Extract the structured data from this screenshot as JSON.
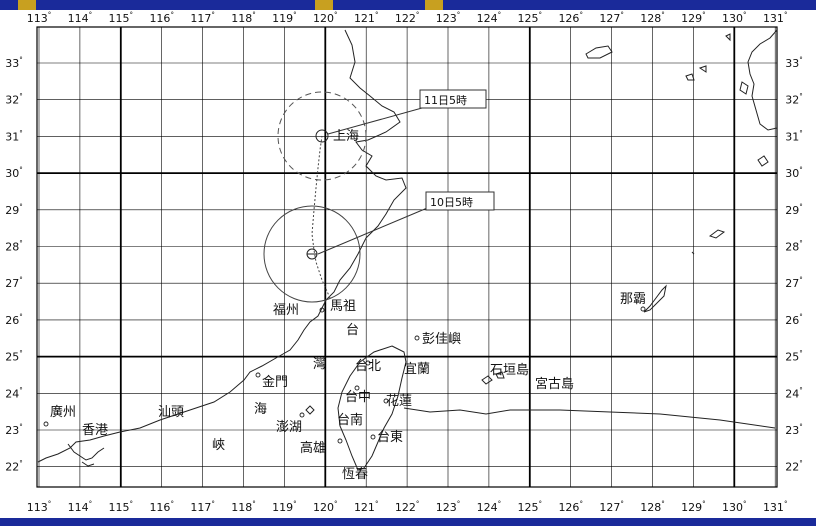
{
  "map": {
    "type": "typhoon-track-map",
    "grid_color": "#000000",
    "coast_color": "#222222",
    "lon_labels": [
      "113",
      "114",
      "115",
      "116",
      "117",
      "118",
      "119",
      "120",
      "121",
      "122",
      "123",
      "124",
      "125",
      "126",
      "127",
      "128",
      "129",
      "130",
      "131"
    ],
    "lat_labels": [
      "33",
      "32",
      "31",
      "30",
      "29",
      "28",
      "27",
      "26",
      "25",
      "24",
      "23",
      "22"
    ],
    "degree_mark": "°"
  },
  "places": [
    {
      "id": "shanghai",
      "label": "上海"
    },
    {
      "id": "fuzhou",
      "label": "福州"
    },
    {
      "id": "mazu",
      "label": "馬祖"
    },
    {
      "id": "taiwan_strait_tai",
      "label": "台"
    },
    {
      "id": "taiwan_strait_wan",
      "label": "灣"
    },
    {
      "id": "pengjiayu",
      "label": "彭佳嶼"
    },
    {
      "id": "taibei",
      "label": "台北"
    },
    {
      "id": "yilan",
      "label": "宜蘭"
    },
    {
      "id": "jinmen",
      "label": "金門"
    },
    {
      "id": "taizhong",
      "label": "台中"
    },
    {
      "id": "hualian",
      "label": "花蓮"
    },
    {
      "id": "penghu",
      "label": "澎湖"
    },
    {
      "id": "tainan",
      "label": "台南"
    },
    {
      "id": "taidong",
      "label": "台東"
    },
    {
      "id": "gaoxiong",
      "label": "高雄"
    },
    {
      "id": "hengchun",
      "label": "恆春"
    },
    {
      "id": "guangzhou",
      "label": "廣州"
    },
    {
      "id": "xianggang",
      "label": "香港"
    },
    {
      "id": "shantou",
      "label": "汕頭"
    },
    {
      "id": "strait_hai",
      "label": "海"
    },
    {
      "id": "strait_xia",
      "label": "峽"
    },
    {
      "id": "ishigaki",
      "label": "石垣島"
    },
    {
      "id": "miyako",
      "label": "宮古島"
    },
    {
      "id": "naha",
      "label": "那霸"
    }
  ],
  "track": [
    {
      "id": "pos_10d05",
      "time_label": "10日5時",
      "lon": 119.7,
      "lat": 27.8
    },
    {
      "id": "pos_11d05",
      "time_label": "11日5時",
      "lon": 120.0,
      "lat": 31.0
    }
  ]
}
